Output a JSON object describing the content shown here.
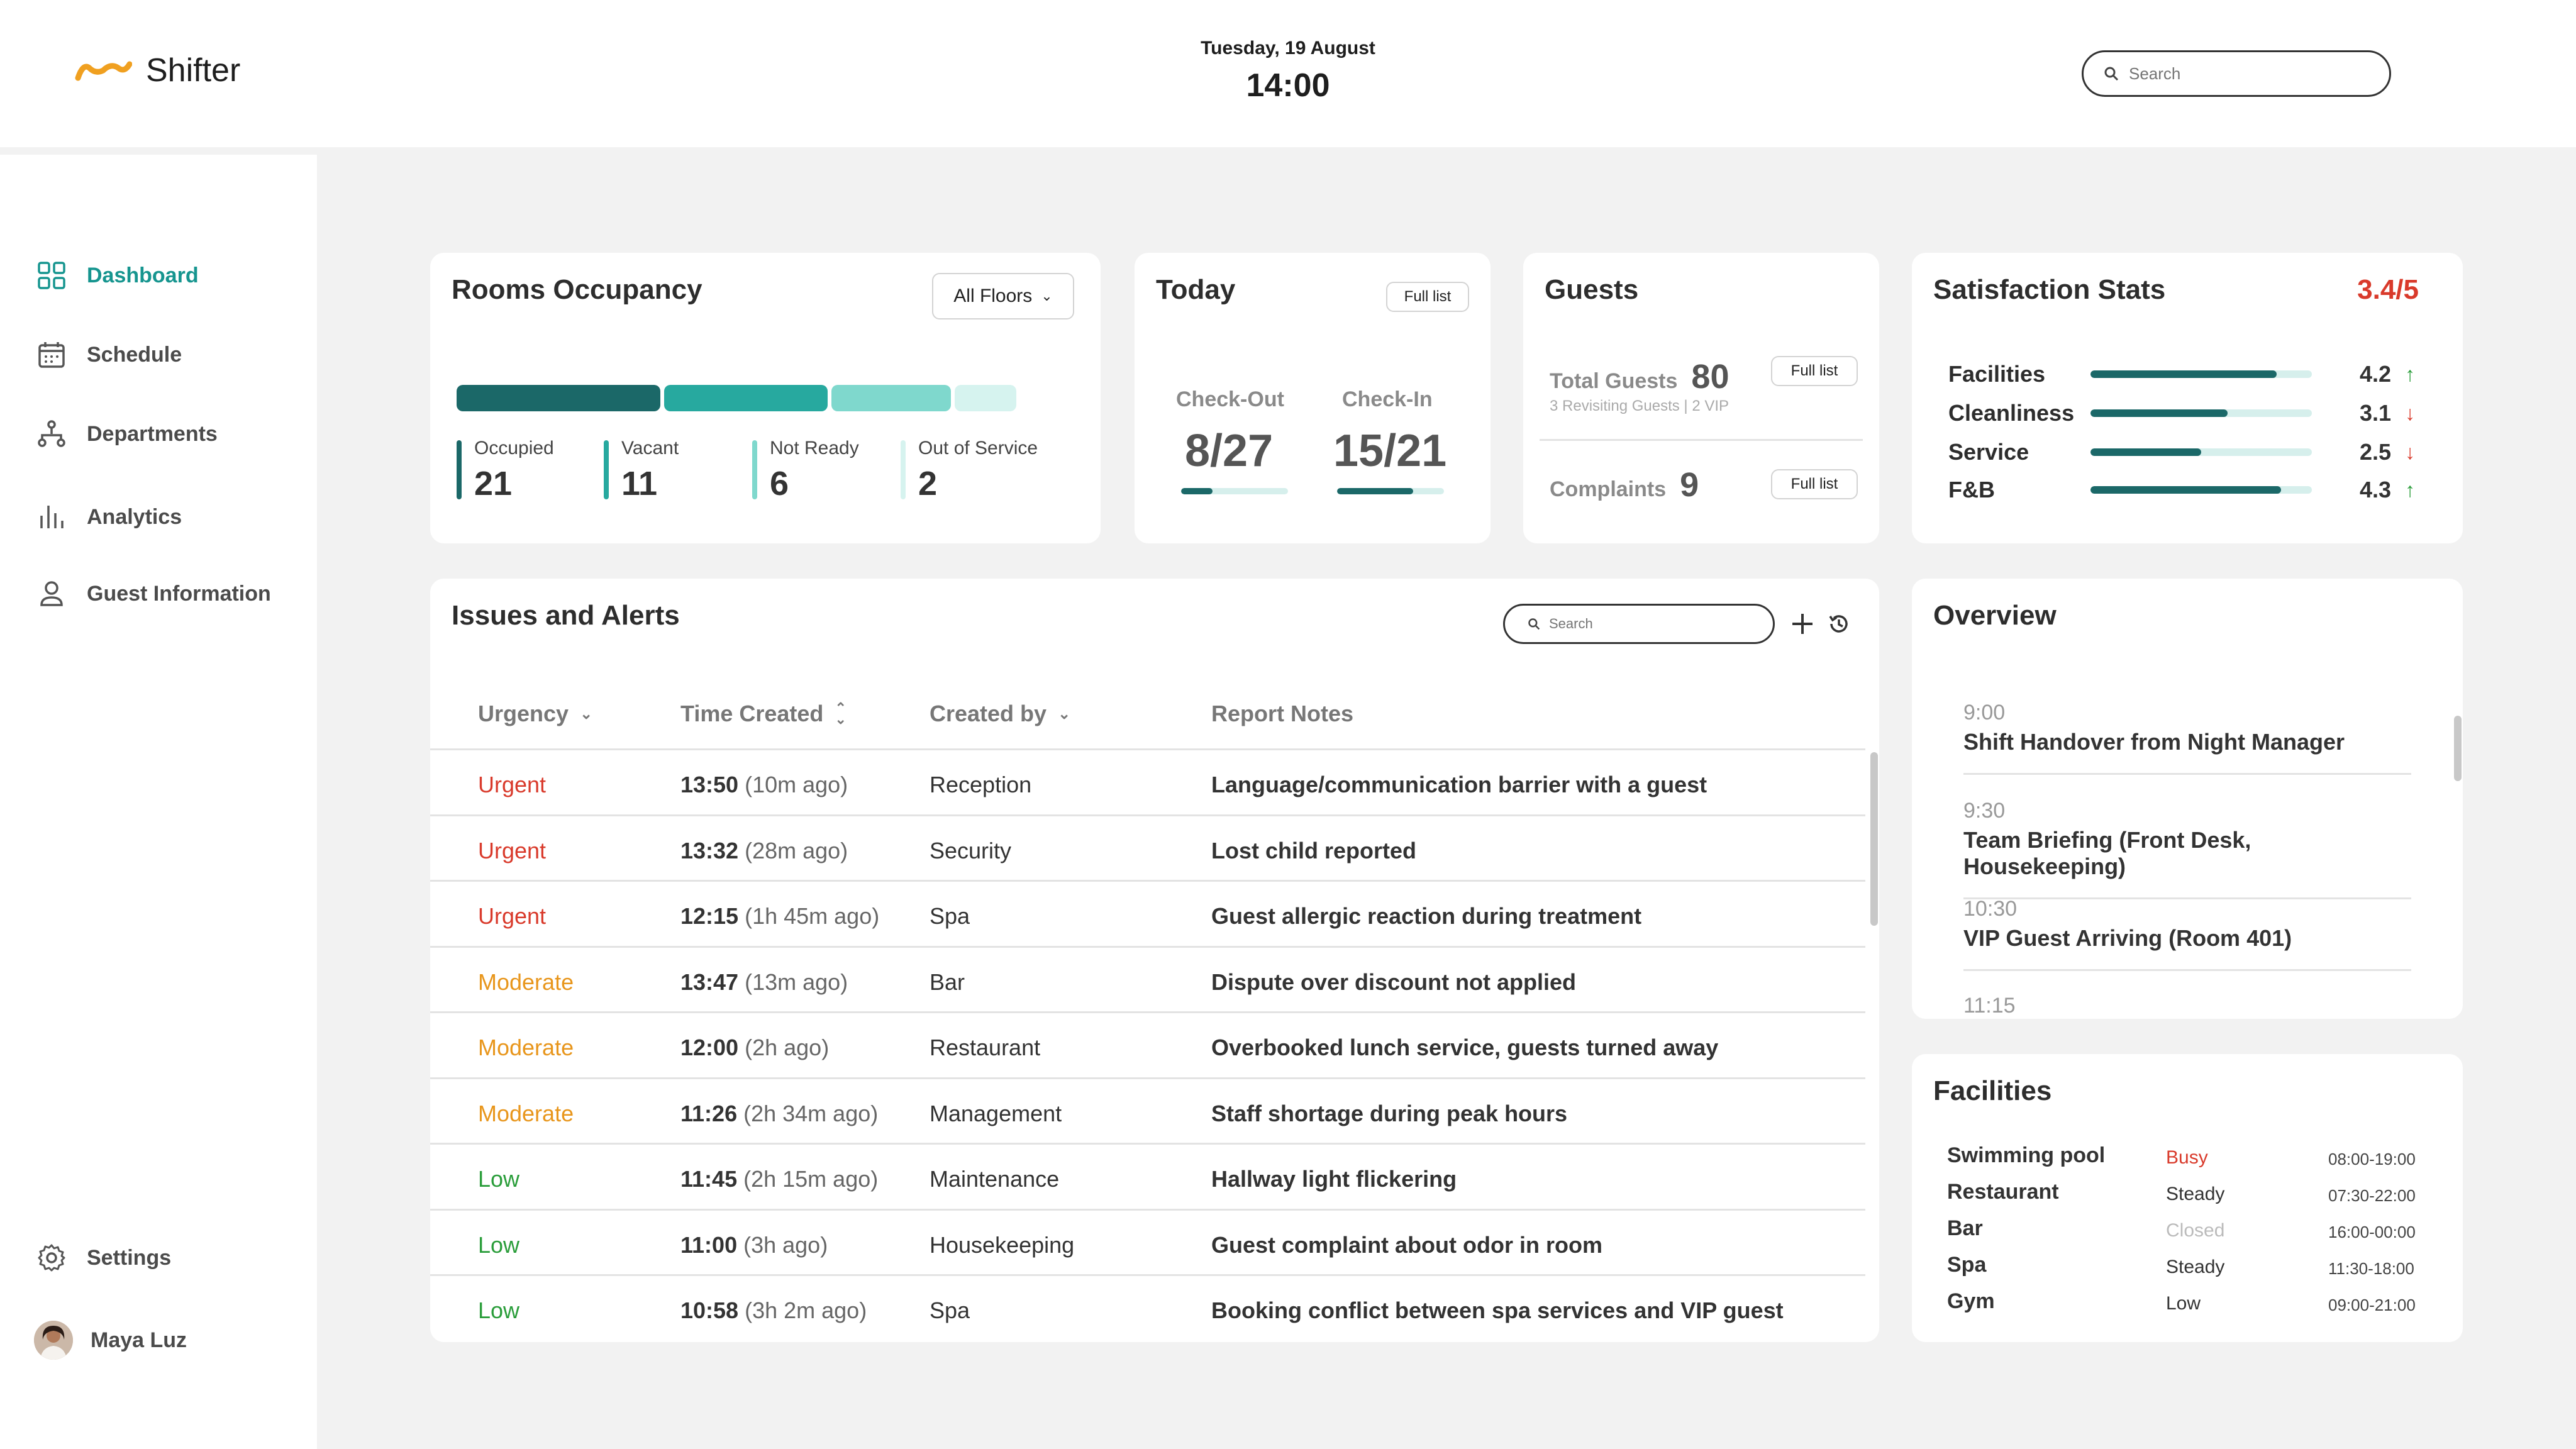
{
  "app": {
    "name": "Shifter"
  },
  "header": {
    "date": "Tuesday, 19 August",
    "time": "14:00",
    "search_placeholder": "Search"
  },
  "sidebar": {
    "items": [
      {
        "label": "Dashboard",
        "icon": "dashboard-icon",
        "active": true
      },
      {
        "label": "Schedule",
        "icon": "calendar-icon"
      },
      {
        "label": "Departments",
        "icon": "hierarchy-icon"
      },
      {
        "label": "Analytics",
        "icon": "bar-chart-icon"
      },
      {
        "label": "Guest Information",
        "icon": "person-icon"
      }
    ],
    "settings": "Settings",
    "user": "Maya Luz"
  },
  "rooms": {
    "title": "Rooms Occupancy",
    "filter": "All Floors",
    "stats": [
      {
        "label": "Occupied",
        "value": "21",
        "color": "#1b6868"
      },
      {
        "label": "Vacant",
        "value": "11",
        "color": "#27a99f"
      },
      {
        "label": "Not Ready",
        "value": "6",
        "color": "#7fd8cd"
      },
      {
        "label": "Out of Service",
        "value": "2",
        "color": "#d6f3ef"
      }
    ]
  },
  "today": {
    "title": "Today",
    "full_list": "Full list",
    "checkout_label": "Check-Out",
    "checkout_value": "8/27",
    "checkout_fraction": 0.296,
    "checkin_label": "Check-In",
    "checkin_value": "15/21",
    "checkin_fraction": 0.714
  },
  "guests": {
    "title": "Guests",
    "total_label": "Total Guests",
    "total_value": "80",
    "sub": "3 Revisiting Guests | 2 VIP",
    "complaints_label": "Complaints",
    "complaints_value": "9",
    "full_list": "Full list"
  },
  "satisfaction": {
    "title": "Satisfaction Stats",
    "overall": "3.4/5",
    "rows": [
      {
        "name": "Facilities",
        "value": "4.2",
        "trend": "up",
        "fraction": 0.84
      },
      {
        "name": "Cleanliness",
        "value": "3.1",
        "trend": "down",
        "fraction": 0.62
      },
      {
        "name": "Service",
        "value": "2.5",
        "trend": "down",
        "fraction": 0.5
      },
      {
        "name": "F&B",
        "value": "4.3",
        "trend": "up",
        "fraction": 0.86
      }
    ]
  },
  "issues": {
    "title": "Issues and Alerts",
    "search_placeholder": "Search",
    "columns": {
      "urgency": "Urgency",
      "time": "Time Created",
      "created_by": "Created by",
      "notes": "Report Notes"
    },
    "rows": [
      {
        "urgency": "Urgent",
        "time": "13:50",
        "ago": "(10m ago)",
        "by": "Reception",
        "note": "Language/communication barrier with a guest"
      },
      {
        "urgency": "Urgent",
        "time": "13:32",
        "ago": "(28m ago)",
        "by": "Security",
        "note": "Lost child reported"
      },
      {
        "urgency": "Urgent",
        "time": "12:15",
        "ago": "(1h 45m ago)",
        "by": "Spa",
        "note": "Guest allergic reaction during treatment"
      },
      {
        "urgency": "Moderate",
        "time": "13:47",
        "ago": "(13m ago)",
        "by": "Bar",
        "note": "Dispute over discount not applied"
      },
      {
        "urgency": "Moderate",
        "time": "12:00",
        "ago": "(2h ago)",
        "by": "Restaurant",
        "note": "Overbooked lunch service, guests turned away"
      },
      {
        "urgency": "Moderate",
        "time": "11:26",
        "ago": "(2h 34m ago)",
        "by": "Management",
        "note": "Staff shortage during peak hours"
      },
      {
        "urgency": "Low",
        "time": "11:45",
        "ago": "(2h 15m ago)",
        "by": "Maintenance",
        "note": "Hallway light flickering"
      },
      {
        "urgency": "Low",
        "time": "11:00",
        "ago": "(3h ago)",
        "by": "Housekeeping",
        "note": "Guest complaint about odor in room"
      },
      {
        "urgency": "Low",
        "time": "10:58",
        "ago": "(3h 2m ago)",
        "by": "Spa",
        "note": "Booking conflict between spa services and VIP guest"
      }
    ]
  },
  "overview": {
    "title": "Overview",
    "items": [
      {
        "time": "9:00",
        "title": "Shift Handover from Night Manager"
      },
      {
        "time": "9:30",
        "title": "Team Briefing (Front Desk, Housekeeping)"
      },
      {
        "time": "10:30",
        "title": "VIP Guest Arriving (Room 401)"
      },
      {
        "time": "11:15",
        "title": ""
      }
    ]
  },
  "facilities": {
    "title": "Facilities",
    "rows": [
      {
        "name": "Swimming pool",
        "status": "Busy",
        "hours": "08:00-19:00"
      },
      {
        "name": "Restaurant",
        "status": "Steady",
        "hours": "07:30-22:00"
      },
      {
        "name": "Bar",
        "status": "Closed",
        "hours": "16:00-00:00"
      },
      {
        "name": "Spa",
        "status": "Steady",
        "hours": "11:30-18:00"
      },
      {
        "name": "Gym",
        "status": "Low",
        "hours": "09:00-21:00"
      }
    ]
  },
  "colors": {
    "accent": "#16958f",
    "dark_teal": "#1b6868",
    "urgent": "#d93a2b",
    "moderate": "#e8961c",
    "low": "#2a9d3a",
    "logo": "#f0a020"
  }
}
